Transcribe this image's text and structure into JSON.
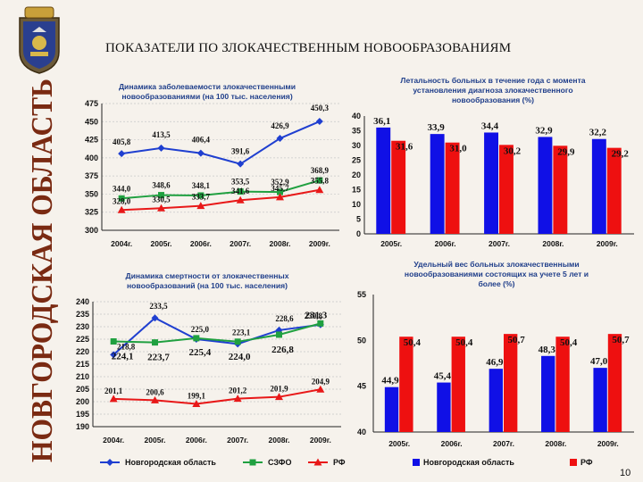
{
  "page": {
    "title": "ПОКАЗАТЕЛИ ПО ЗЛОКАЧЕСТВЕННЫМ НОВООБРАЗОВАНИЯМ",
    "side_text": "НОВГОРОДСКАЯ ОБЛАСТЬ",
    "page_number": "10"
  },
  "colors": {
    "novgorod": "#1f3fd0",
    "szfo": "#20a040",
    "rf": "#e81818",
    "bar_blue": "#1010e6",
    "bar_red": "#ee1010",
    "title_blue": "#1f3e8a",
    "side_brown": "#7a2a12"
  },
  "chart_data": [
    {
      "type": "line",
      "title_lines": [
        "Динамика заболеваемости злокачественными",
        "новообразованиями (на 100 тыс. населения)"
      ],
      "categories": [
        "2004г.",
        "2005г.",
        "2006г.",
        "2007г.",
        "2008г.",
        "2009г."
      ],
      "ylim": [
        300,
        475
      ],
      "yticks": [
        "300",
        "325",
        "350",
        "375",
        "400",
        "425",
        "450",
        "475"
      ],
      "grid": true,
      "series": [
        {
          "key": "novgorod",
          "values": [
            405.8,
            413.5,
            406.4,
            391.6,
            426.9,
            450.3
          ],
          "labels": [
            "405,8",
            "413,5",
            "406,4",
            "391,6",
            "426,9",
            "450,3"
          ]
        },
        {
          "key": "szfo",
          "values": [
            344.0,
            348.6,
            348.1,
            353.5,
            352.9,
            368.9
          ],
          "labels": [
            "344,0",
            "348,6",
            "348,1",
            "353,5",
            "352,9",
            "368,9"
          ]
        },
        {
          "key": "rf",
          "values": [
            328.0,
            330.5,
            333.7,
            341.6,
            345.7,
            355.8
          ],
          "labels": [
            "328,0",
            "330,5",
            "333,7",
            "341,6",
            "345,7",
            "355,8"
          ]
        }
      ]
    },
    {
      "type": "bar",
      "title_lines": [
        "Летальность больных в течение года с момента",
        "установления диагноза злокачественного",
        "новообразования (%)"
      ],
      "categories": [
        "2005г.",
        "2006г.",
        "2007г.",
        "2008г.",
        "2009г."
      ],
      "ylim": [
        0,
        40
      ],
      "yticks": [
        "0",
        "5",
        "10",
        "15",
        "20",
        "25",
        "30",
        "35",
        "40"
      ],
      "series": [
        {
          "key": "novgorod",
          "values": [
            36.1,
            33.9,
            34.4,
            32.9,
            32.2
          ],
          "labels": [
            "36,1",
            "33,9",
            "34,4",
            "32,9",
            "32,2"
          ]
        },
        {
          "key": "rf",
          "values": [
            31.6,
            31.0,
            30.2,
            29.9,
            29.2
          ],
          "labels": [
            "31,6",
            "31,0",
            "30,2",
            "29,9",
            "29,2"
          ]
        }
      ]
    },
    {
      "type": "line",
      "title_lines": [
        "Динамика смертности от злокачественных",
        "новообразований (на 100 тыс. населения)"
      ],
      "categories": [
        "2004г.",
        "2005г.",
        "2006г.",
        "2007г.",
        "2008г.",
        "2009г."
      ],
      "ylim": [
        190,
        240
      ],
      "yticks": [
        "190",
        "195",
        "200",
        "205",
        "210",
        "215",
        "220",
        "225",
        "230",
        "235",
        "240"
      ],
      "grid": true,
      "series": [
        {
          "key": "novgorod",
          "values": [
            218.8,
            233.5,
            225.0,
            223.1,
            228.6,
            230.8
          ],
          "labels": [
            "218,8",
            "233,5",
            "225,0",
            "223,1",
            "228,6",
            "230,8"
          ]
        },
        {
          "key": "szfo",
          "values": [
            224.1,
            223.7,
            225.4,
            224.0,
            226.8,
            231.3
          ],
          "labels": [
            "224,1",
            "223,7",
            "225,4",
            "224,0",
            "226,8",
            "231,3"
          ]
        },
        {
          "key": "rf",
          "values": [
            201.1,
            200.6,
            199.1,
            201.2,
            201.9,
            204.9
          ],
          "labels": [
            "201,1",
            "200,6",
            "199,1",
            "201,2",
            "201,9",
            "204,9"
          ]
        }
      ],
      "legend": [
        {
          "key": "novgorod",
          "label": "Новгородская область"
        },
        {
          "key": "szfo",
          "label": "СЗФО"
        },
        {
          "key": "rf",
          "label": "РФ"
        }
      ],
      "legend_position": "bottom"
    },
    {
      "type": "bar",
      "title_lines": [
        "Удельный вес больных злокачественными",
        "новообразованиями состоящих на учете 5 лет и",
        "более (%)"
      ],
      "categories": [
        "2005г.",
        "2006г.",
        "2007г.",
        "2008г.",
        "2009г."
      ],
      "ylim": [
        40,
        55
      ],
      "yticks": [
        "40",
        "45",
        "50",
        "55"
      ],
      "series": [
        {
          "key": "novgorod",
          "values": [
            44.9,
            45.4,
            46.9,
            48.3,
            47.0
          ],
          "labels": [
            "44,9",
            "45,4",
            "46,9",
            "48,3",
            "47,0"
          ]
        },
        {
          "key": "rf",
          "values": [
            50.4,
            50.4,
            50.7,
            50.4,
            50.7
          ],
          "labels": [
            "50,4",
            "50,4",
            "50,7",
            "50,4",
            "50,7"
          ]
        }
      ],
      "legend": [
        {
          "key": "novgorod",
          "label": "Новгородская область"
        },
        {
          "key": "rf",
          "label": "РФ"
        }
      ],
      "legend_position": "bottom"
    }
  ]
}
